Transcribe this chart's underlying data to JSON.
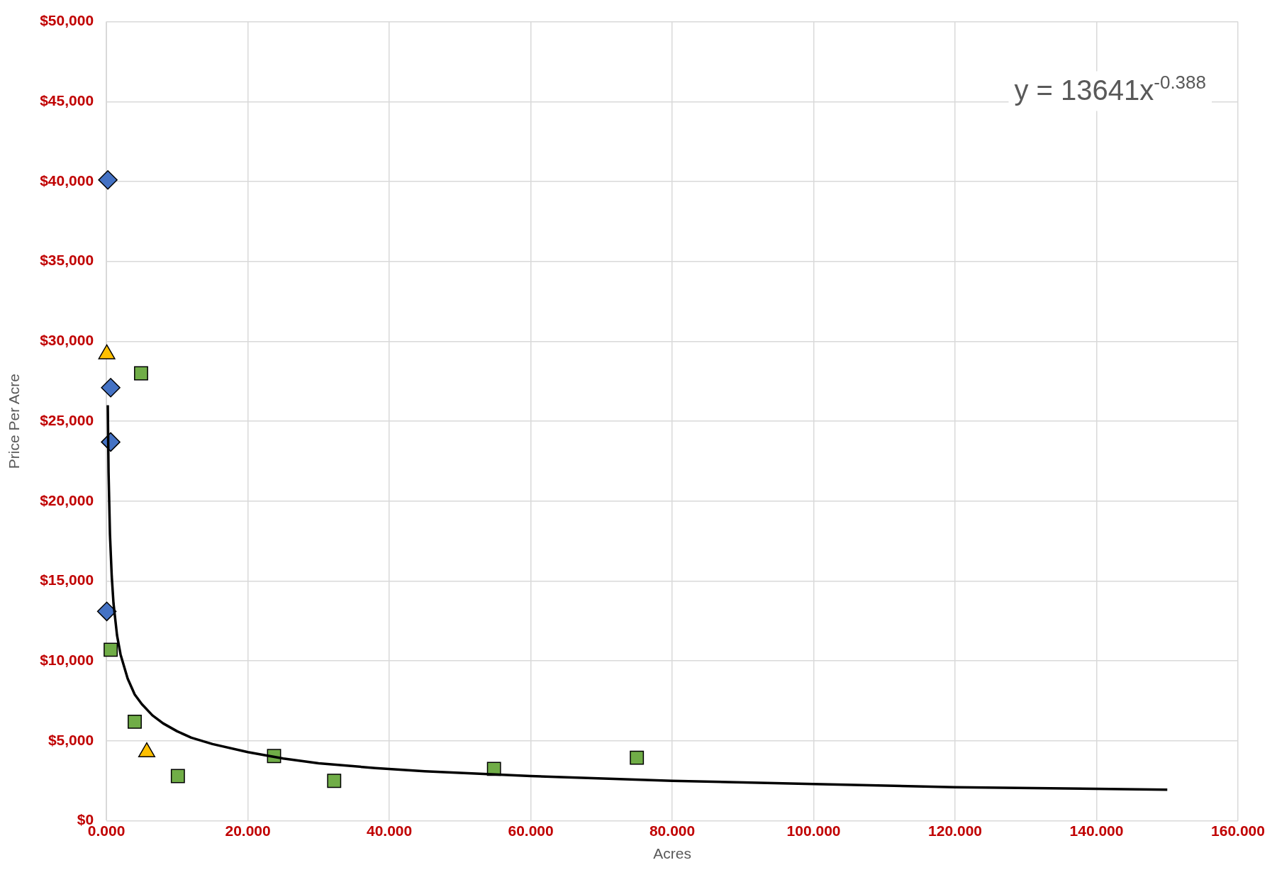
{
  "chart_data": {
    "type": "scatter",
    "xlabel": "Acres",
    "ylabel": "Price Per Acre",
    "annotations": [
      "y = 13641x$^{-0.388}$"
    ],
    "xlim": [
      0,
      160
    ],
    "xticks": [
      {
        "value": 0,
        "label": "0.000"
      },
      {
        "value": 20,
        "label": "20.000"
      },
      {
        "value": 40,
        "label": "40.000"
      },
      {
        "value": 60,
        "label": "60.000"
      },
      {
        "value": 80,
        "label": "80.000"
      },
      {
        "value": 100,
        "label": "100.000"
      },
      {
        "value": 120,
        "label": "120.000"
      },
      {
        "value": 140,
        "label": "140.000"
      },
      {
        "value": 160,
        "label": "160.000"
      }
    ],
    "ylim": [
      0,
      50000
    ],
    "yticks": [
      {
        "value": 0,
        "label": "$0"
      },
      {
        "value": 5000,
        "label": "$5,000"
      },
      {
        "value": 10000,
        "label": "$10,000"
      },
      {
        "value": 15000,
        "label": "$15,000"
      },
      {
        "value": 20000,
        "label": "$20,000"
      },
      {
        "value": 25000,
        "label": "$25,000"
      },
      {
        "value": 30000,
        "label": "$30,000"
      },
      {
        "value": 35000,
        "label": "$35,000"
      },
      {
        "value": 40000,
        "label": "$40,000"
      },
      {
        "value": 45000,
        "label": "$45,000"
      },
      {
        "value": 50000,
        "label": "$50,000"
      }
    ],
    "grid": true,
    "legend": false,
    "series": [
      {
        "type": "line",
        "color": "#000000",
        "marker": "none",
        "line_style": "solid",
        "x": [
          0.19,
          0.3,
          0.5,
          0.75,
          1,
          1.5,
          2,
          3,
          4,
          5,
          6.5,
          8,
          10,
          12,
          15,
          20,
          25,
          30,
          38,
          45,
          60,
          80,
          100,
          120,
          150
        ],
        "values": [
          26000,
          21800,
          17900,
          15300,
          13600,
          11600,
          10400,
          8900,
          7900,
          7300,
          6600,
          6100,
          5600,
          5200,
          4800,
          4300,
          3900,
          3600,
          3300,
          3100,
          2800,
          2500,
          2300,
          2100,
          1950
        ]
      },
      {
        "color": "#4472c4",
        "marker": "diamond",
        "x": [
          0.2,
          0.6,
          0.6,
          0.05
        ],
        "values": [
          40100,
          27100,
          23700,
          13100
        ]
      },
      {
        "color": "#ffc000",
        "marker": "triangle",
        "x": [
          0.05,
          5.7
        ],
        "values": [
          29200,
          4300
        ]
      },
      {
        "color": "#70ad47",
        "marker": "square",
        "x": [
          4.9,
          0.6,
          4.0,
          10.1,
          23.7,
          32.2,
          54.8,
          75.0
        ],
        "values": [
          28000,
          10700,
          6200,
          2800,
          4050,
          2500,
          3250,
          3950
        ]
      }
    ]
  }
}
